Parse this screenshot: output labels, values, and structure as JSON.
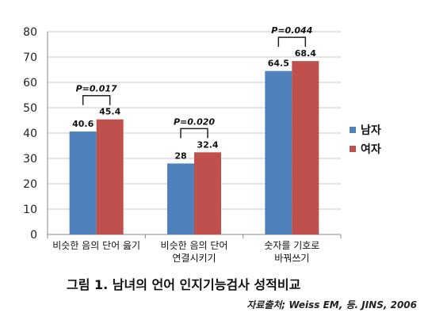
{
  "chart_data": {
    "type": "bar",
    "categories": [
      [
        "비슷한 음의 단어 읊기"
      ],
      [
        "비슷한 음의 단어",
        "연결시키기"
      ],
      [
        "숫자를 기호로",
        "바꿔쓰기"
      ]
    ],
    "series": [
      {
        "name": "남자",
        "color": "#4f81bd",
        "values": [
          40.6,
          28,
          64.5
        ],
        "labels": [
          "40.6",
          "28",
          "64.5"
        ]
      },
      {
        "name": "여자",
        "color": "#c0504d",
        "values": [
          45.4,
          32.4,
          68.4
        ],
        "labels": [
          "45.4",
          "32.4",
          "68.4"
        ]
      }
    ],
    "ylim": [
      0,
      80
    ],
    "yticks": [
      0,
      10,
      20,
      30,
      40,
      50,
      60,
      70,
      80
    ],
    "grid": true,
    "legend": "right",
    "annotations": [
      {
        "category": 0,
        "text": "P=0.017"
      },
      {
        "category": 1,
        "text": "P=0.020"
      },
      {
        "category": 2,
        "text": "P=0.044"
      }
    ]
  },
  "caption": "그림 1. 남녀의 언어 인지기능검사 성적비교",
  "source": "자료출처; Weiss EM, 등. JINS, 2006"
}
